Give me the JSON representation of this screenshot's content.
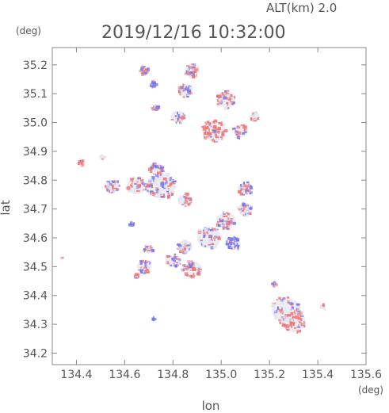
{
  "header": {
    "altitude_label": "ALT(km)  2.0",
    "timestamp": "2019/12/16 10:32:00"
  },
  "colors": {
    "positive": "#ee7777",
    "negative": "#7777ee",
    "neutral": "#e4e4ee",
    "frame": "#888888",
    "text": "#555555"
  },
  "chart_data": {
    "type": "heatmap",
    "title": "2019/12/16 10:32:00",
    "subtitle": "ALT(km)  2.0",
    "xlabel": "lon",
    "ylabel": "lat",
    "x_unit": "(deg)",
    "y_unit": "(deg)",
    "xlim": [
      134.3,
      135.6
    ],
    "ylim": [
      34.16,
      35.26
    ],
    "xticks": [
      {
        "value": 134.4,
        "label": "134.4"
      },
      {
        "value": 134.6,
        "label": "134.6"
      },
      {
        "value": 134.8,
        "label": "134.8"
      },
      {
        "value": 135.0,
        "label": "135.0"
      },
      {
        "value": 135.2,
        "label": "135.2"
      },
      {
        "value": 135.4,
        "label": "135.4"
      },
      {
        "value": 135.6,
        "label": "135.6"
      }
    ],
    "yticks": [
      {
        "value": 34.2,
        "label": "34.2"
      },
      {
        "value": 34.3,
        "label": "34.3"
      },
      {
        "value": 34.4,
        "label": "34.4"
      },
      {
        "value": 34.5,
        "label": "34.5"
      },
      {
        "value": 34.6,
        "label": "34.6"
      },
      {
        "value": 34.7,
        "label": "34.7"
      },
      {
        "value": 34.8,
        "label": "34.8"
      },
      {
        "value": 34.9,
        "label": "34.9"
      },
      {
        "value": 35.0,
        "label": "35.0"
      },
      {
        "value": 35.1,
        "label": "35.1"
      },
      {
        "value": 35.2,
        "label": "35.2"
      }
    ],
    "grid": false,
    "legend": "none",
    "echo_clusters": [
      {
        "lon": 134.42,
        "lat": 34.86,
        "r": 0.012,
        "n": 4,
        "sign": "pos"
      },
      {
        "lon": 134.51,
        "lat": 34.88,
        "r": 0.01,
        "n": 2,
        "sign": "neu"
      },
      {
        "lon": 134.68,
        "lat": 35.18,
        "r": 0.02,
        "n": 6,
        "sign": "mix"
      },
      {
        "lon": 134.72,
        "lat": 35.13,
        "r": 0.015,
        "n": 5,
        "sign": "neg"
      },
      {
        "lon": 134.73,
        "lat": 35.05,
        "r": 0.015,
        "n": 5,
        "sign": "mix"
      },
      {
        "lon": 134.88,
        "lat": 35.18,
        "r": 0.03,
        "n": 10,
        "sign": "mix"
      },
      {
        "lon": 134.85,
        "lat": 35.11,
        "r": 0.03,
        "n": 10,
        "sign": "mix"
      },
      {
        "lon": 135.02,
        "lat": 35.08,
        "r": 0.04,
        "n": 14,
        "sign": "pos"
      },
      {
        "lon": 134.82,
        "lat": 35.02,
        "r": 0.03,
        "n": 8,
        "sign": "mix"
      },
      {
        "lon": 134.97,
        "lat": 34.97,
        "r": 0.05,
        "n": 22,
        "sign": "pos"
      },
      {
        "lon": 135.08,
        "lat": 34.97,
        "r": 0.03,
        "n": 10,
        "sign": "mix"
      },
      {
        "lon": 135.14,
        "lat": 35.02,
        "r": 0.02,
        "n": 6,
        "sign": "neu"
      },
      {
        "lon": 134.55,
        "lat": 34.78,
        "r": 0.03,
        "n": 10,
        "sign": "mix"
      },
      {
        "lon": 134.65,
        "lat": 34.78,
        "r": 0.04,
        "n": 14,
        "sign": "mix"
      },
      {
        "lon": 134.75,
        "lat": 34.78,
        "r": 0.06,
        "n": 30,
        "sign": "mix"
      },
      {
        "lon": 134.73,
        "lat": 34.84,
        "r": 0.03,
        "n": 10,
        "sign": "mix"
      },
      {
        "lon": 134.85,
        "lat": 34.73,
        "r": 0.03,
        "n": 10,
        "sign": "mix"
      },
      {
        "lon": 134.63,
        "lat": 34.65,
        "r": 0.01,
        "n": 2,
        "sign": "neg"
      },
      {
        "lon": 135.1,
        "lat": 34.77,
        "r": 0.03,
        "n": 12,
        "sign": "mix"
      },
      {
        "lon": 135.1,
        "lat": 34.7,
        "r": 0.03,
        "n": 10,
        "sign": "mix"
      },
      {
        "lon": 135.02,
        "lat": 34.66,
        "r": 0.04,
        "n": 14,
        "sign": "mix"
      },
      {
        "lon": 134.95,
        "lat": 34.6,
        "r": 0.05,
        "n": 18,
        "sign": "mix"
      },
      {
        "lon": 135.05,
        "lat": 34.58,
        "r": 0.03,
        "n": 12,
        "sign": "neg"
      },
      {
        "lon": 134.85,
        "lat": 34.57,
        "r": 0.03,
        "n": 10,
        "sign": "mix"
      },
      {
        "lon": 134.7,
        "lat": 34.56,
        "r": 0.02,
        "n": 6,
        "sign": "mix"
      },
      {
        "lon": 134.8,
        "lat": 34.52,
        "r": 0.03,
        "n": 10,
        "sign": "mix"
      },
      {
        "lon": 134.88,
        "lat": 34.49,
        "r": 0.04,
        "n": 14,
        "sign": "pos"
      },
      {
        "lon": 134.68,
        "lat": 34.5,
        "r": 0.03,
        "n": 10,
        "sign": "mix"
      },
      {
        "lon": 134.65,
        "lat": 34.47,
        "r": 0.01,
        "n": 3,
        "sign": "pos"
      },
      {
        "lon": 134.72,
        "lat": 34.32,
        "r": 0.008,
        "n": 2,
        "sign": "neg"
      },
      {
        "lon": 135.22,
        "lat": 34.44,
        "r": 0.01,
        "n": 3,
        "sign": "mix"
      },
      {
        "lon": 135.27,
        "lat": 34.35,
        "r": 0.06,
        "n": 22,
        "sign": "mix"
      },
      {
        "lon": 135.3,
        "lat": 34.31,
        "r": 0.05,
        "n": 16,
        "sign": "pos"
      },
      {
        "lon": 135.42,
        "lat": 34.36,
        "r": 0.012,
        "n": 2,
        "sign": "neu"
      },
      {
        "lon": 134.34,
        "lat": 34.53,
        "r": 0.008,
        "n": 1,
        "sign": "neu"
      }
    ]
  }
}
